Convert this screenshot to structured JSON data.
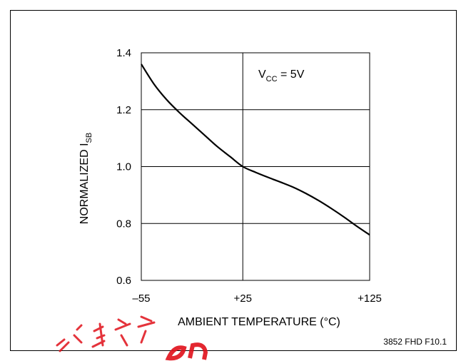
{
  "chart_data": {
    "type": "line",
    "x_ticks": [
      "–55",
      "+25",
      "+125"
    ],
    "x_tick_values": [
      -55,
      25,
      125
    ],
    "y_ticks": [
      "0.6",
      "0.8",
      "1.0",
      "1.2",
      "1.4"
    ],
    "y_tick_values": [
      0.6,
      0.8,
      1.0,
      1.2,
      1.4
    ],
    "xlim": [
      -55,
      125
    ],
    "ylim": [
      0.6,
      1.4
    ],
    "grid": true,
    "xlabel": "AMBIENT TEMPERATURE (°C)",
    "ylabel_main": "NORMALIZED I",
    "ylabel_sub": "SB",
    "annotation": {
      "main": "V",
      "sub": "CC",
      "rest": " = 5V"
    },
    "series": [
      {
        "x": [
          -55,
          -45,
          -35,
          -25,
          -15,
          -5,
          5,
          15,
          25,
          35,
          45,
          55,
          65,
          75,
          85,
          95,
          105,
          115,
          125
        ],
        "y": [
          1.36,
          1.29,
          1.235,
          1.19,
          1.15,
          1.11,
          1.07,
          1.035,
          1.0,
          0.98,
          0.962,
          0.945,
          0.927,
          0.905,
          0.88,
          0.852,
          0.822,
          0.79,
          0.76
        ]
      }
    ],
    "figure_id": "3852 FHD F10.1"
  },
  "colors": {
    "line": "#000000",
    "grid": "#000000",
    "watermark": "#e0101a"
  }
}
